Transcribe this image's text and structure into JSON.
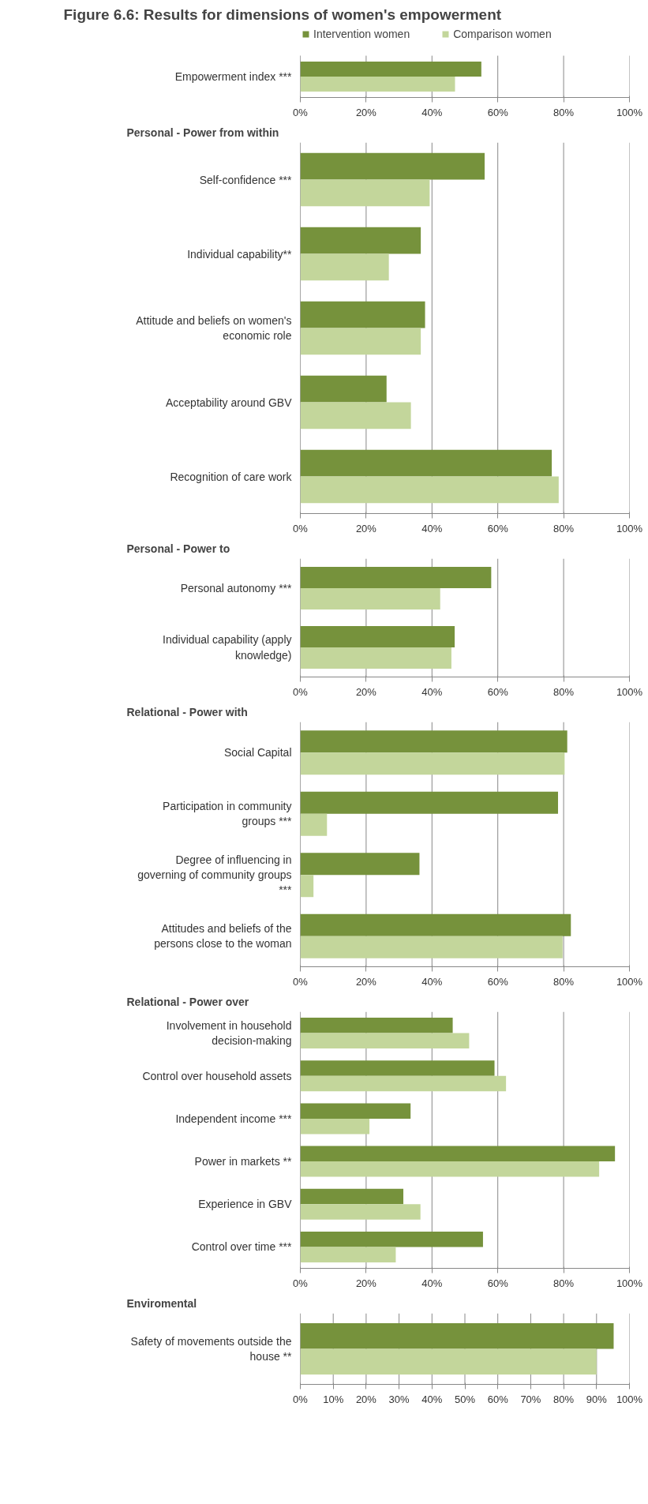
{
  "chart_data": [
    {
      "type": "bar",
      "orientation": "horizontal",
      "title": "Figure 6.6: Results for dimensions of women's empowerment",
      "categories": [
        "Empowerment index ***"
      ],
      "series": [
        {
          "name": "Intervention women",
          "color": "#76923c",
          "values": [
            55
          ]
        },
        {
          "name": "Comparison women",
          "color": "#c3d69b",
          "values": [
            47
          ]
        }
      ],
      "xlim": [
        0,
        100
      ],
      "xticks": [
        {
          "value": 0,
          "label": "0%"
        },
        {
          "value": 20,
          "label": "20%"
        },
        {
          "value": 40,
          "label": "40%"
        },
        {
          "value": 60,
          "label": "60%"
        },
        {
          "value": 80,
          "label": "80%"
        },
        {
          "value": 100,
          "label": "100%"
        }
      ],
      "grid": "x",
      "legend": "top"
    },
    {
      "type": "bar",
      "orientation": "horizontal",
      "title": "Personal - Power from within",
      "categories": [
        "Self-confidence ***",
        "Individual capability**",
        "Attitude and beliefs on women's economic role",
        "Acceptability around GBV",
        "Recognition of care work"
      ],
      "series": [
        {
          "color": "#76923c",
          "values": [
            56,
            36.6,
            37.9,
            26.2,
            76.4
          ]
        },
        {
          "color": "#c3d69b",
          "values": [
            39.3,
            26.9,
            36.6,
            33.6,
            78.5
          ]
        }
      ],
      "xlim": [
        0,
        100
      ],
      "xticks": [
        {
          "value": 0,
          "label": "0%"
        },
        {
          "value": 20,
          "label": "20%"
        },
        {
          "value": 40,
          "label": "40%"
        },
        {
          "value": 60,
          "label": "60%"
        },
        {
          "value": 80,
          "label": "80%"
        },
        {
          "value": 100,
          "label": "100%"
        }
      ],
      "grid": "x"
    },
    {
      "type": "bar",
      "orientation": "horizontal",
      "title": "Personal - Power to",
      "categories": [
        "Personal autonomy ***",
        "Individual capability (apply knowledge)"
      ],
      "series": [
        {
          "color": "#76923c",
          "values": [
            58,
            46.9
          ]
        },
        {
          "color": "#c3d69b",
          "values": [
            42.5,
            45.9
          ]
        }
      ],
      "xlim": [
        0,
        100
      ],
      "xticks": [
        {
          "value": 0,
          "label": "0%"
        },
        {
          "value": 20,
          "label": "20%"
        },
        {
          "value": 40,
          "label": "40%"
        },
        {
          "value": 60,
          "label": "60%"
        },
        {
          "value": 80,
          "label": "80%"
        },
        {
          "value": 100,
          "label": "100%"
        }
      ],
      "grid": "x"
    },
    {
      "type": "bar",
      "orientation": "horizontal",
      "title": "Relational - Power with",
      "categories": [
        "Social Capital",
        "Participation in community groups ***",
        "Degree of influencing in governing of community groups ***",
        "Attitudes and beliefs of the persons close to the woman"
      ],
      "series": [
        {
          "color": "#76923c",
          "values": [
            81.1,
            78.3,
            36.2,
            82.2
          ]
        },
        {
          "color": "#c3d69b",
          "values": [
            80.3,
            8.1,
            4,
            79.7
          ]
        }
      ],
      "xlim": [
        0,
        100
      ],
      "xticks": [
        {
          "value": 0,
          "label": "0%"
        },
        {
          "value": 20,
          "label": "20%"
        },
        {
          "value": 40,
          "label": "40%"
        },
        {
          "value": 60,
          "label": "60%"
        },
        {
          "value": 80,
          "label": "80%"
        },
        {
          "value": 100,
          "label": "100%"
        }
      ],
      "grid": "x"
    },
    {
      "type": "bar",
      "orientation": "horizontal",
      "title": "Relational - Power over",
      "categories": [
        "Involvement in household decision-making",
        "Control over household assets",
        "Independent income ***",
        "Power in markets **",
        "Experience in GBV",
        "Control over time ***"
      ],
      "series": [
        {
          "color": "#76923c",
          "values": [
            46.3,
            59,
            33.5,
            95.6,
            31.3,
            55.5
          ]
        },
        {
          "color": "#c3d69b",
          "values": [
            51.3,
            62.5,
            21,
            90.8,
            36.5,
            29
          ]
        }
      ],
      "xlim": [
        0,
        100
      ],
      "xticks": [
        {
          "value": 0,
          "label": "0%"
        },
        {
          "value": 20,
          "label": "20%"
        },
        {
          "value": 40,
          "label": "40%"
        },
        {
          "value": 60,
          "label": "60%"
        },
        {
          "value": 80,
          "label": "80%"
        },
        {
          "value": 100,
          "label": "100%"
        }
      ],
      "grid": "x"
    },
    {
      "type": "bar",
      "orientation": "horizontal",
      "title": "Enviromental",
      "categories": [
        "Safety of movements outside the house **"
      ],
      "series": [
        {
          "color": "#76923c",
          "values": [
            95.2
          ]
        },
        {
          "color": "#c3d69b",
          "values": [
            90
          ]
        }
      ],
      "xlim": [
        0,
        100
      ],
      "xticks": [
        {
          "value": 0,
          "label": "0%"
        },
        {
          "value": 10,
          "label": "10%"
        },
        {
          "value": 20,
          "label": "20%"
        },
        {
          "value": 30,
          "label": "30%"
        },
        {
          "value": 40,
          "label": "40%"
        },
        {
          "value": 50,
          "label": "50%"
        },
        {
          "value": 60,
          "label": "60%"
        },
        {
          "value": 70,
          "label": "70%"
        },
        {
          "value": 80,
          "label": "80%"
        },
        {
          "value": 90,
          "label": "90%"
        },
        {
          "value": 100,
          "label": "100%"
        }
      ],
      "grid": "x"
    }
  ]
}
